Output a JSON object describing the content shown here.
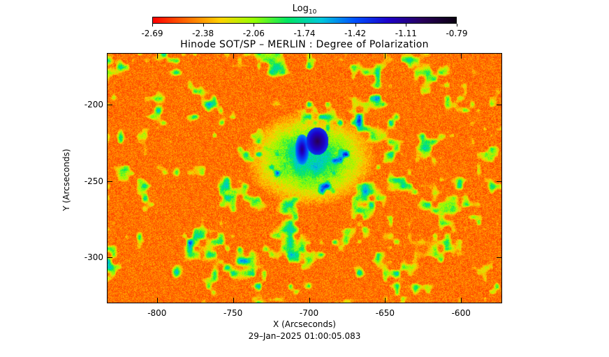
{
  "colorbar": {
    "label": "Log",
    "label_subscript": "10",
    "ticks": [
      "-2.69",
      "-2.38",
      "-2.06",
      "-1.74",
      "-1.42",
      "-1.11",
      "-0.79"
    ],
    "colors": [
      "#ff0000",
      "#ff6a00",
      "#ffd200",
      "#96ff00",
      "#00e664",
      "#00c8dc",
      "#0050ff",
      "#1e00c8",
      "#28005a",
      "#0a0010"
    ],
    "range": [
      -2.69,
      -0.79
    ]
  },
  "title": "Hinode SOT/SP – MERLIN : Degree of Polarization",
  "axes": {
    "xlabel": "X (Arcseconds)",
    "ylabel": "Y (Arcseconds)",
    "xticks": [
      "-800",
      "-750",
      "-700",
      "-650",
      "-600"
    ],
    "yticks": [
      "-200",
      "-250",
      "-300"
    ],
    "xlim": [
      -833,
      -573
    ],
    "ylim": [
      -330,
      -166
    ]
  },
  "timestamp": "29–Jan–2025 01:00:05.083"
}
